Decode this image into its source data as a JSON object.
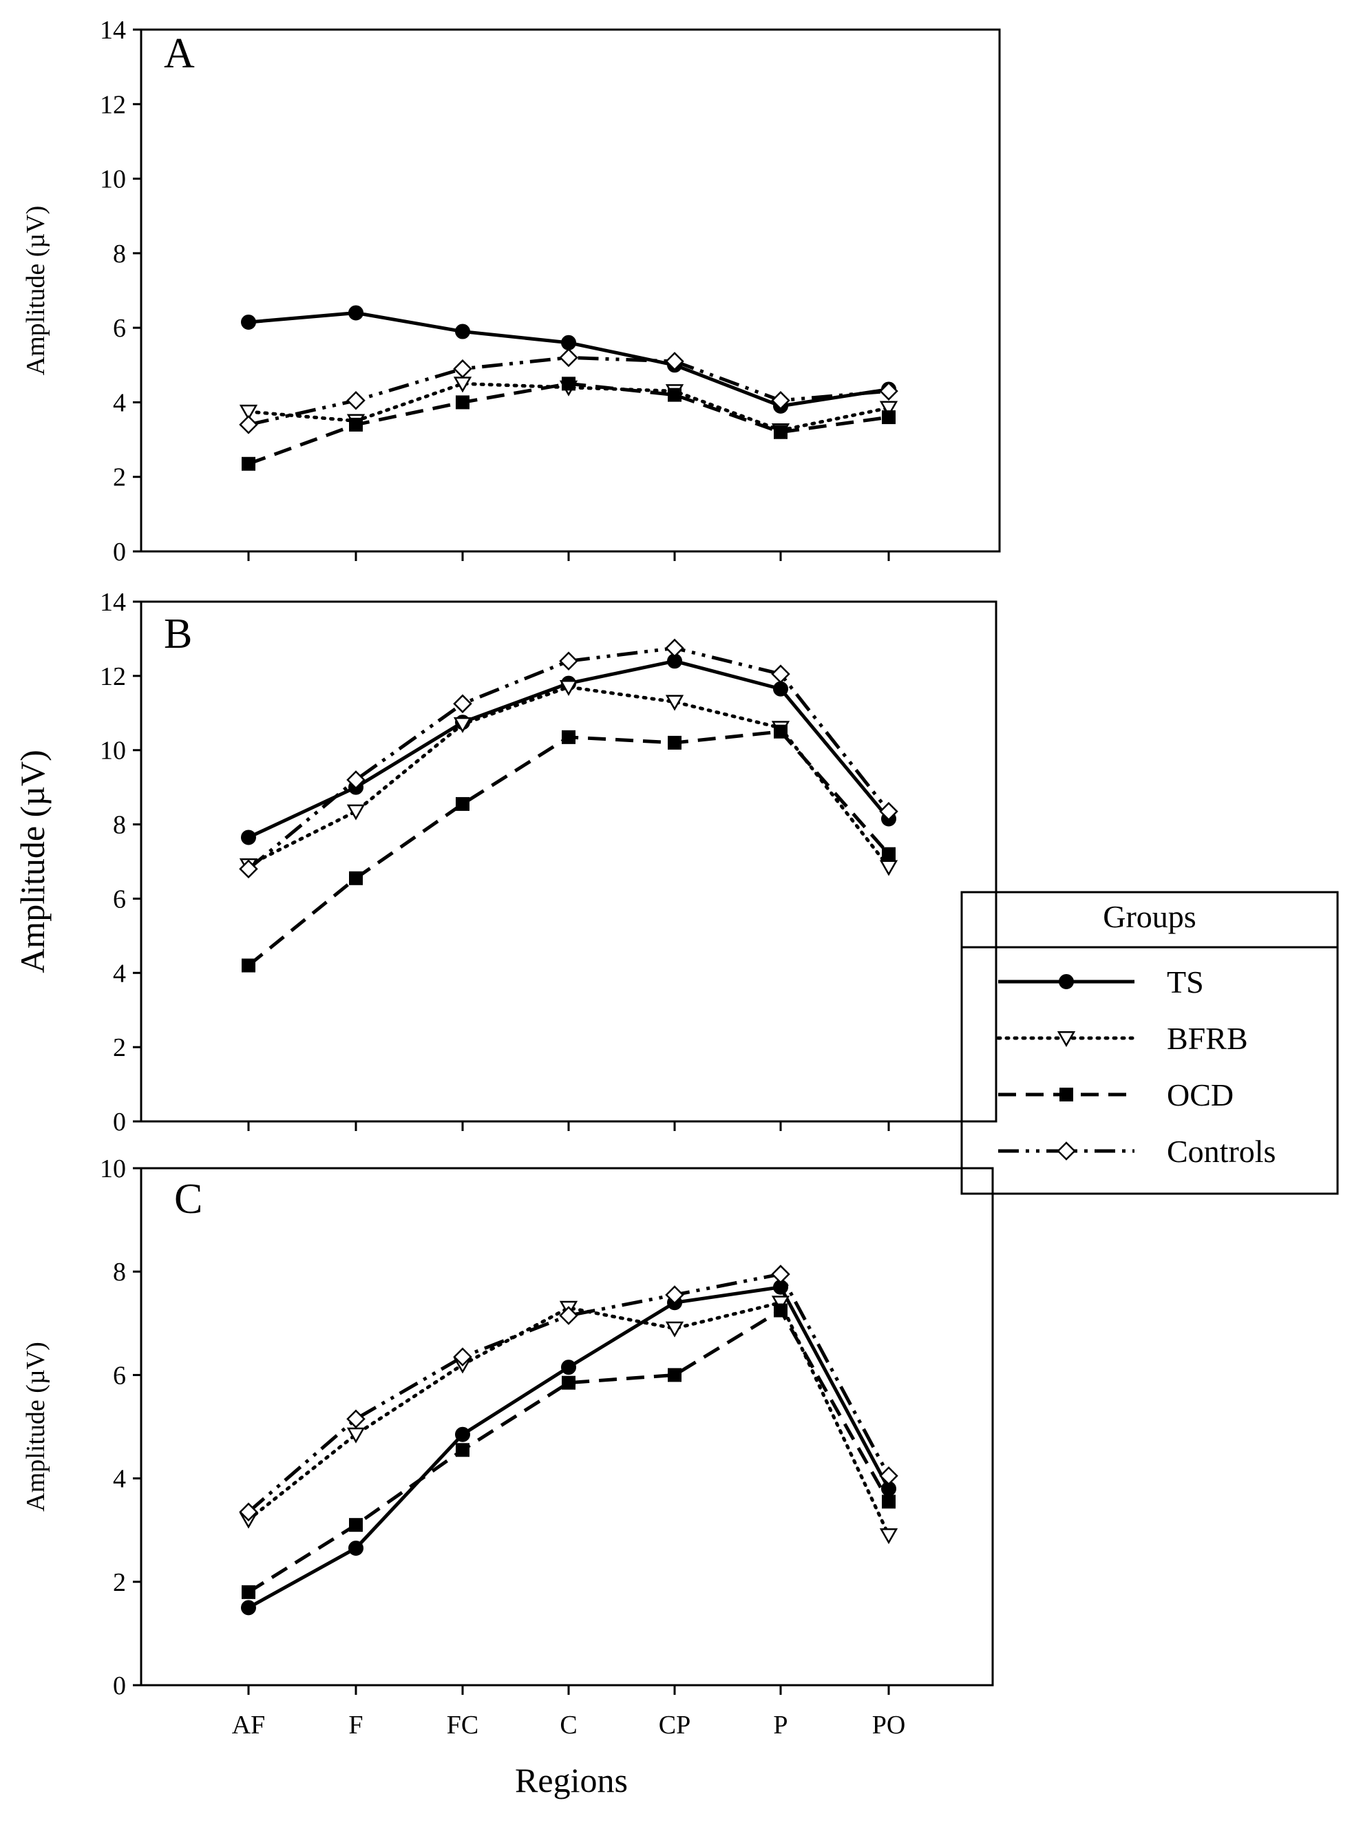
{
  "figure": {
    "xlabel": "Regions",
    "categories": [
      "AF",
      "F",
      "FC",
      "C",
      "CP",
      "P",
      "PO"
    ]
  },
  "legend": {
    "title": "Groups",
    "entries": [
      "TS",
      "BFRB",
      "OCD",
      "Controls"
    ]
  },
  "chart_data": [
    {
      "type": "line",
      "panel_label": "A",
      "ylabel": "Amplitude (µV)",
      "ylim": [
        0,
        14
      ],
      "yticks": [
        0,
        2,
        4,
        6,
        8,
        10,
        12,
        14
      ],
      "categories": [
        "AF",
        "F",
        "FC",
        "C",
        "CP",
        "P",
        "PO"
      ],
      "series": [
        {
          "name": "TS",
          "style": "solid",
          "marker": "filled-circle",
          "values": [
            6.15,
            6.4,
            5.9,
            5.6,
            5.0,
            3.9,
            4.35
          ]
        },
        {
          "name": "BFRB",
          "style": "dotted",
          "marker": "open-triangle-down",
          "values": [
            3.75,
            3.5,
            4.5,
            4.4,
            4.3,
            3.25,
            3.85
          ]
        },
        {
          "name": "OCD",
          "style": "dashed",
          "marker": "filled-square",
          "values": [
            2.35,
            3.4,
            4.0,
            4.5,
            4.2,
            3.2,
            3.6
          ]
        },
        {
          "name": "Controls",
          "style": "dash-dot-dot",
          "marker": "open-diamond",
          "values": [
            3.4,
            4.05,
            4.9,
            5.2,
            5.1,
            4.05,
            4.3
          ]
        }
      ]
    },
    {
      "type": "line",
      "panel_label": "B",
      "ylabel": "Amplitude (µV)",
      "ylim": [
        0,
        14
      ],
      "yticks": [
        0,
        2,
        4,
        6,
        8,
        10,
        12,
        14
      ],
      "categories": [
        "AF",
        "F",
        "FC",
        "C",
        "CP",
        "P",
        "PO"
      ],
      "series": [
        {
          "name": "TS",
          "style": "solid",
          "marker": "filled-circle",
          "values": [
            7.65,
            9.0,
            10.75,
            11.8,
            12.4,
            11.65,
            8.15
          ]
        },
        {
          "name": "BFRB",
          "style": "dotted",
          "marker": "open-triangle-down",
          "values": [
            6.9,
            8.35,
            10.7,
            11.7,
            11.3,
            10.6,
            6.85
          ]
        },
        {
          "name": "OCD",
          "style": "dashed",
          "marker": "filled-square",
          "values": [
            4.2,
            6.55,
            8.55,
            10.35,
            10.2,
            10.5,
            7.2
          ]
        },
        {
          "name": "Controls",
          "style": "dash-dot-dot",
          "marker": "open-diamond",
          "values": [
            6.8,
            9.2,
            11.25,
            12.4,
            12.75,
            12.05,
            8.35
          ]
        }
      ]
    },
    {
      "type": "line",
      "panel_label": "C",
      "ylabel": "Amplitude (µV)",
      "ylim": [
        0,
        10
      ],
      "yticks": [
        0,
        2,
        4,
        6,
        8,
        10
      ],
      "categories": [
        "AF",
        "F",
        "FC",
        "C",
        "CP",
        "P",
        "PO"
      ],
      "series": [
        {
          "name": "TS",
          "style": "solid",
          "marker": "filled-circle",
          "values": [
            1.5,
            2.65,
            4.85,
            6.15,
            7.4,
            7.7,
            3.8
          ]
        },
        {
          "name": "BFRB",
          "style": "dotted",
          "marker": "open-triangle-down",
          "values": [
            3.2,
            4.85,
            6.2,
            7.3,
            6.9,
            7.4,
            2.9
          ]
        },
        {
          "name": "OCD",
          "style": "dashed",
          "marker": "filled-square",
          "values": [
            1.8,
            3.1,
            4.55,
            5.85,
            6.0,
            7.25,
            3.55
          ]
        },
        {
          "name": "Controls",
          "style": "dash-dot-dot",
          "marker": "open-diamond",
          "values": [
            3.35,
            5.15,
            6.35,
            7.15,
            7.55,
            7.95,
            4.05
          ]
        }
      ]
    }
  ]
}
